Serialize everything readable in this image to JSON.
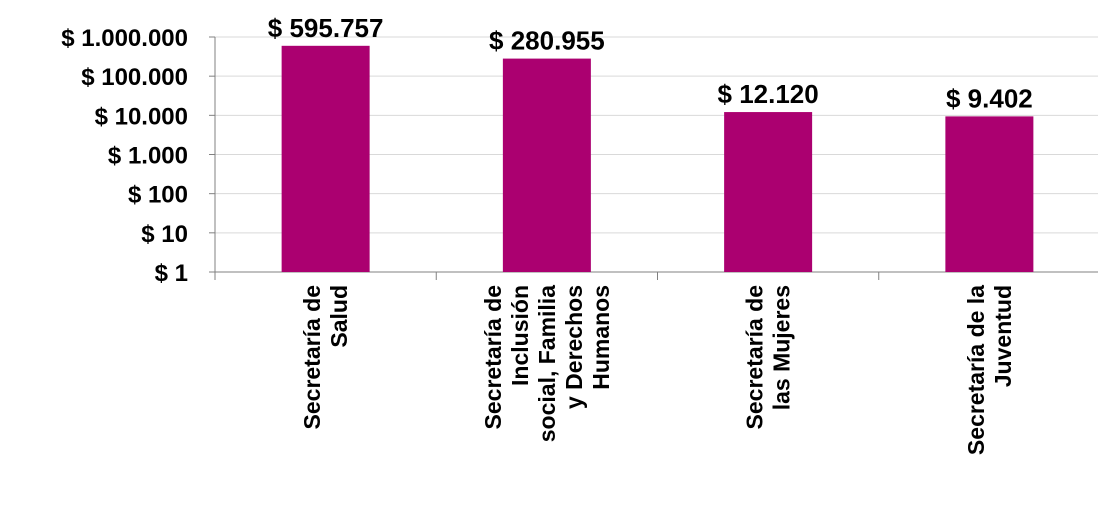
{
  "chart_data": {
    "type": "bar",
    "title": "",
    "xlabel": "",
    "ylabel": "",
    "yscale": "log",
    "ylim": [
      1,
      1000000
    ],
    "grid": true,
    "legend": "none",
    "bar_color": "#AB0070",
    "categories": [
      [
        "Secretaría de",
        "Salud"
      ],
      [
        "Secretaría de",
        "Inclusión",
        "social, Familia",
        "y Derechos",
        "Humanos"
      ],
      [
        "Secretaría de",
        "las Mujeres"
      ],
      [
        "Secretaría de la",
        "Juventud"
      ]
    ],
    "values": [
      595757,
      280955,
      12120,
      9402
    ],
    "data_labels": [
      "$ 595.757",
      "$ 280.955",
      "$ 12.120",
      "$ 9.402"
    ],
    "y_ticks": [
      {
        "value": 1,
        "label": "$ 1"
      },
      {
        "value": 10,
        "label": "$ 10"
      },
      {
        "value": 100,
        "label": "$ 100"
      },
      {
        "value": 1000,
        "label": "$ 1.000"
      },
      {
        "value": 10000,
        "label": "$ 10.000"
      },
      {
        "value": 100000,
        "label": "$ 100.000"
      },
      {
        "value": 1000000,
        "label": "$ 1.000.000"
      }
    ]
  }
}
